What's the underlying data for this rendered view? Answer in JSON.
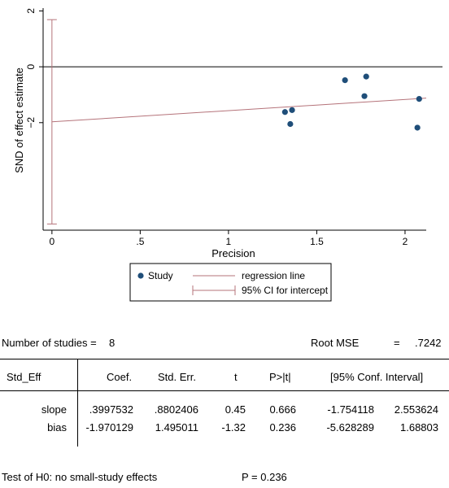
{
  "chart_data": {
    "type": "scatter",
    "title": "",
    "xlabel": "Precision",
    "ylabel": "SND of effect estimate",
    "xlim": [
      -0.05,
      2.12
    ],
    "ylim": [
      -5.85,
      2.1
    ],
    "xticks": [
      0,
      0.5,
      1,
      1.5,
      2
    ],
    "xtick_labels": [
      "0",
      ".5",
      "1",
      "1.5",
      "2"
    ],
    "yticks": [
      2,
      0,
      -2
    ],
    "ytick_labels": [
      "2",
      "0",
      "−2"
    ],
    "grid": false,
    "reference_line_y": 0,
    "series": [
      {
        "name": "Study",
        "color": "#1f4e79",
        "x": [
          1.32,
          1.35,
          1.36,
          1.66,
          1.77,
          1.78,
          2.07,
          2.08
        ],
        "y": [
          -1.62,
          -2.05,
          -1.55,
          -0.48,
          -1.05,
          -0.35,
          -2.18,
          -1.15
        ]
      }
    ],
    "regression": {
      "name": "regression line",
      "color": "#b5737a",
      "intercept": -1.970129,
      "slope": 0.3997532
    },
    "intercept_ci": {
      "name": "95% CI for intercept",
      "color": "#b5737a",
      "x": 0,
      "low": -5.628289,
      "high": 1.68803
    },
    "legend_placement": "bottom"
  },
  "stats": {
    "n_label": "Number of studies =",
    "n_value": "8",
    "rmse_label": "Root MSE",
    "rmse_eq": "=",
    "rmse_value": ".7242",
    "headers": [
      "Std_Eff",
      "Coef.",
      "Std. Err.",
      "t",
      "P>|t|",
      "[95% Conf. Interval]"
    ],
    "rows": [
      {
        "name": "slope",
        "coef": ".3997532",
        "se": ".8802406",
        "t": "0.45",
        "p": "0.666",
        "lo": "-1.754118",
        "hi": "2.553624"
      },
      {
        "name": "bias",
        "coef": "-1.970129",
        "se": "1.495011",
        "t": "-1.32",
        "p": "0.236",
        "lo": "-5.628289",
        "hi": "1.68803"
      }
    ],
    "test_label": "Test of H0: no small-study effects",
    "test_p": "P = 0.236"
  }
}
